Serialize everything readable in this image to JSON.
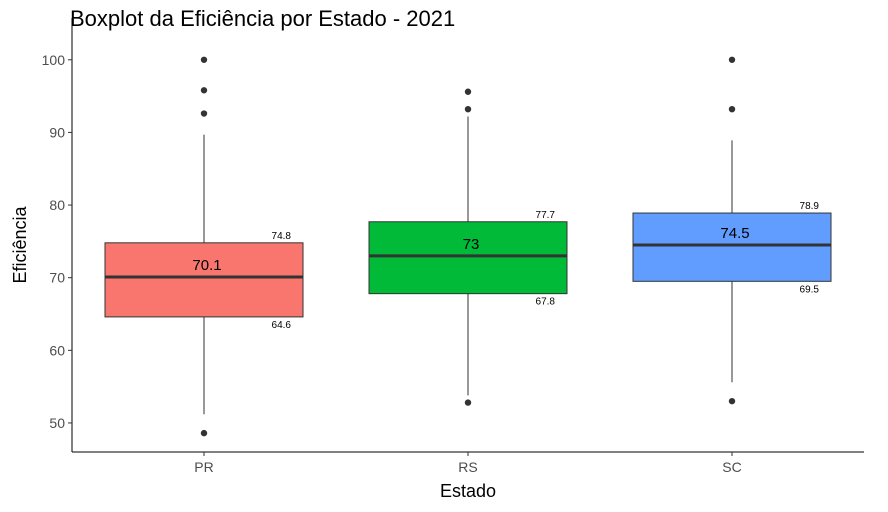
{
  "chart_data": {
    "type": "boxplot",
    "title": "Boxplot da Eficiência por Estado - 2021",
    "xlabel": "Estado",
    "ylabel": "Eficiência",
    "ylim": [
      46,
      103
    ],
    "yticks": [
      50,
      60,
      70,
      80,
      90,
      100
    ],
    "grid": false,
    "legend": "none",
    "categories": [
      "PR",
      "RS",
      "SC"
    ],
    "boxes": [
      {
        "category": "PR",
        "color": "#F8766D",
        "whisker_low": 51.2,
        "q1": 64.6,
        "median": 70.1,
        "q3": 74.8,
        "whisker_high": 89.7,
        "outliers": [
          48.6,
          92.6,
          95.8,
          100
        ],
        "median_label": "70.1",
        "q1_label": "64.6",
        "q3_label": "74.8"
      },
      {
        "category": "RS",
        "color": "#00BA38",
        "whisker_low": 53.8,
        "q1": 67.8,
        "median": 73,
        "q3": 77.7,
        "whisker_high": 92.2,
        "outliers": [
          52.8,
          93.2,
          95.6
        ],
        "median_label": "73",
        "q1_label": "67.8",
        "q3_label": "77.7"
      },
      {
        "category": "SC",
        "color": "#619CFF",
        "whisker_low": 55.6,
        "q1": 69.5,
        "median": 74.5,
        "q3": 78.9,
        "whisker_high": 88.9,
        "outliers": [
          53,
          93.2,
          100
        ],
        "median_label": "74.5",
        "q1_label": "69.5",
        "q3_label": "78.9"
      }
    ]
  }
}
